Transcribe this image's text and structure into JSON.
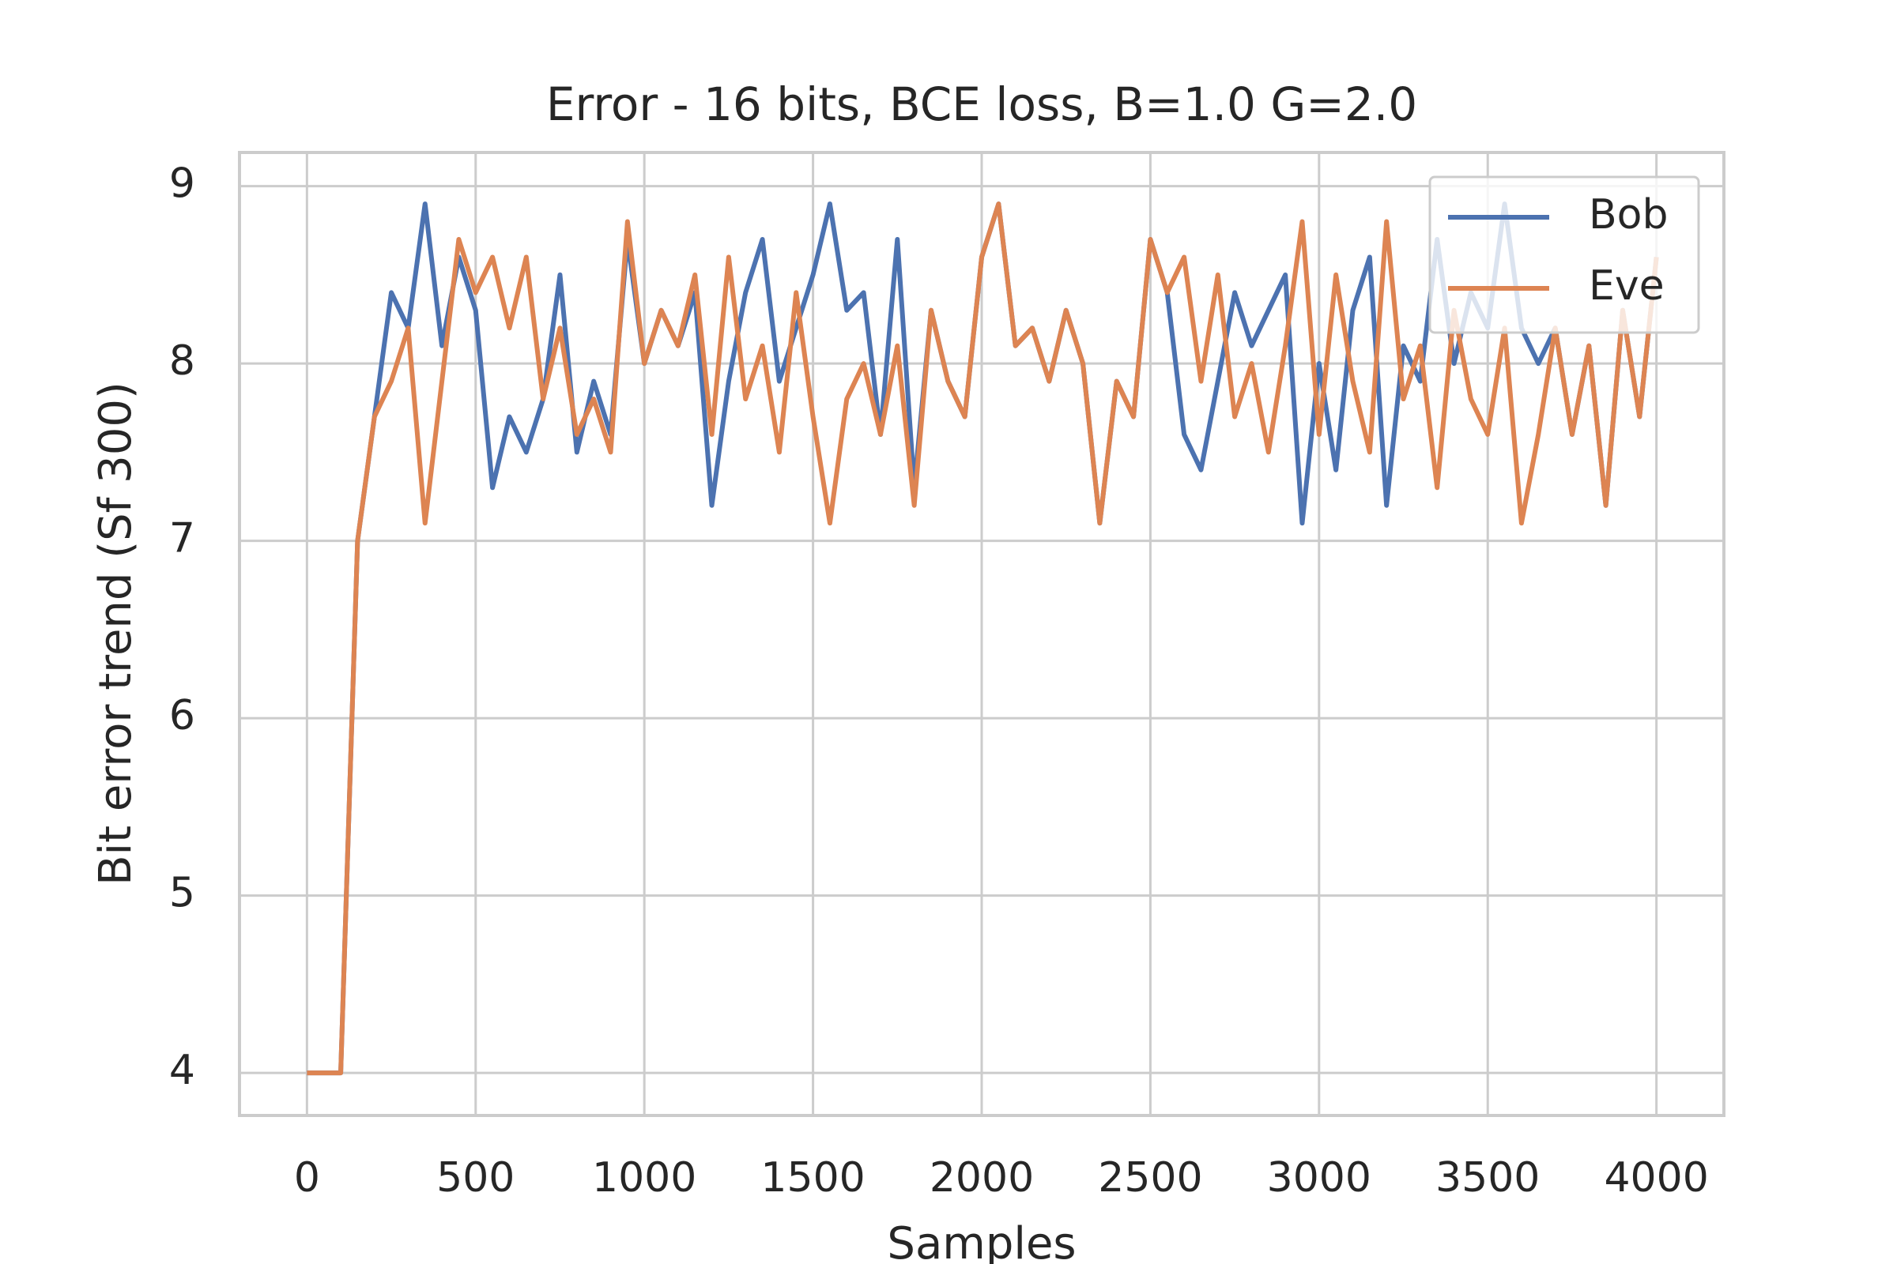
{
  "chart_data": {
    "type": "line",
    "title": "Error - 16 bits, BCE loss, B=1.0 G=2.0",
    "x_label": "Samples",
    "y_label": "Bit error trend (Sf 300)",
    "x": [
      0,
      50,
      100,
      150,
      200,
      250,
      300,
      350,
      400,
      450,
      500,
      550,
      600,
      650,
      700,
      750,
      800,
      850,
      900,
      950,
      1000,
      1050,
      1100,
      1150,
      1200,
      1250,
      1300,
      1350,
      1400,
      1450,
      1500,
      1550,
      1600,
      1650,
      1700,
      1750,
      1800,
      1850,
      1900,
      1950,
      2000,
      2050,
      2100,
      2150,
      2200,
      2250,
      2300,
      2350,
      2400,
      2450,
      2500,
      2550,
      2600,
      2650,
      2700,
      2750,
      2800,
      2850,
      2900,
      2950,
      3000,
      3050,
      3100,
      3150,
      3200,
      3250,
      3300,
      3350,
      3400,
      3450,
      3500,
      3550,
      3600,
      3650,
      3700,
      3750,
      3800,
      3850,
      3900,
      3950,
      4000
    ],
    "series": [
      {
        "name": "Bob",
        "color": "#4c72b0",
        "values": [
          4,
          4,
          4,
          7.0,
          7.7,
          8.4,
          8.2,
          8.9,
          8.1,
          8.6,
          8.3,
          7.3,
          7.7,
          7.5,
          7.8,
          8.5,
          7.5,
          7.9,
          7.6,
          8.7,
          8.0,
          8.3,
          8.1,
          8.4,
          7.2,
          7.9,
          8.4,
          8.7,
          7.9,
          8.2,
          8.5,
          8.9,
          8.3,
          8.4,
          7.6,
          8.7,
          7.3,
          8.3,
          7.9,
          7.7,
          8.6,
          8.9,
          8.1,
          8.2,
          7.9,
          8.3,
          8.0,
          7.1,
          7.9,
          7.7,
          8.7,
          8.4,
          7.6,
          7.4,
          7.9,
          8.4,
          8.1,
          8.3,
          8.5,
          7.1,
          8.0,
          7.4,
          8.3,
          8.6,
          7.2,
          8.1,
          7.9,
          8.7,
          8.0,
          8.4,
          8.2,
          8.9,
          8.2,
          8.0,
          8.2,
          7.6,
          8.1,
          7.2,
          8.3,
          7.7,
          8.6
        ]
      },
      {
        "name": "Eve",
        "color": "#dd8452",
        "values": [
          4,
          4,
          4,
          7.0,
          7.7,
          7.9,
          8.2,
          7.1,
          7.9,
          8.7,
          8.4,
          8.6,
          8.2,
          8.6,
          7.8,
          8.2,
          7.6,
          7.8,
          7.5,
          8.8,
          8.0,
          8.3,
          8.1,
          8.5,
          7.6,
          8.6,
          7.8,
          8.1,
          7.5,
          8.4,
          7.7,
          7.1,
          7.8,
          8.0,
          7.6,
          8.1,
          7.2,
          8.3,
          7.9,
          7.7,
          8.6,
          8.9,
          8.1,
          8.2,
          7.9,
          8.3,
          8.0,
          7.1,
          7.9,
          7.7,
          8.7,
          8.4,
          8.6,
          7.9,
          8.5,
          7.7,
          8.0,
          7.5,
          8.1,
          8.8,
          7.6,
          8.5,
          7.9,
          7.5,
          8.8,
          7.8,
          8.1,
          7.3,
          8.3,
          7.8,
          7.6,
          8.2,
          7.1,
          7.6,
          8.2,
          7.6,
          8.1,
          7.2,
          8.3,
          7.7,
          8.6
        ]
      }
    ],
    "xlim": [
      -200,
      4200
    ],
    "ylim": [
      3.76,
      9.19
    ],
    "xticks": [
      0,
      500,
      1000,
      1500,
      2000,
      2500,
      3000,
      3500,
      4000
    ],
    "yticks": [
      4,
      5,
      6,
      7,
      8,
      9
    ],
    "grid": true,
    "legend": "upper right"
  }
}
